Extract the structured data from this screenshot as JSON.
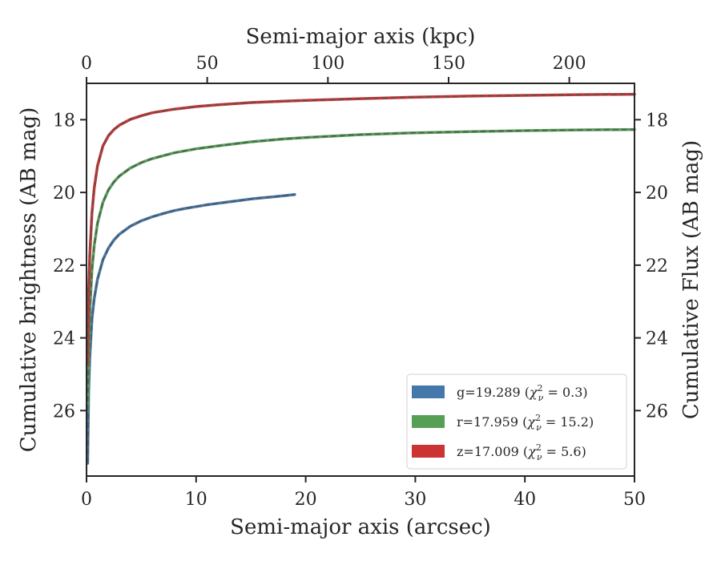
{
  "chart_data": {
    "type": "line",
    "xlabel": "Semi-major axis (arcsec)",
    "ylabel": "Cumulative brightness (AB mag)",
    "x2label": "Semi-major axis (kpc)",
    "y2label": "Cumulative Flux (AB mag)",
    "xlim": [
      0,
      50
    ],
    "ylim": [
      27.8,
      17.0
    ],
    "y_inverted": true,
    "x_ticks": [
      0,
      10,
      20,
      30,
      40,
      50
    ],
    "y_ticks": [
      18,
      20,
      22,
      24,
      26
    ],
    "x2lim": [
      0,
      227
    ],
    "x2_ticks": [
      0,
      50,
      100,
      150,
      200
    ],
    "grid": false,
    "legend_position": "bottom-right",
    "series": [
      {
        "name": "g=19.289 (χ²ν = 0.3)",
        "legend_main": "g=19.289 (",
        "legend_tail": " = 0.3)",
        "color": "#4477aa",
        "model_color": "#555555",
        "x": [
          0.1,
          0.2,
          0.3,
          0.5,
          0.7,
          1.0,
          1.5,
          2.0,
          2.5,
          3.0,
          4.0,
          5.0,
          6.0,
          7.0,
          8.0,
          9.0,
          10.0,
          11.0,
          12.0,
          13.0,
          14.0,
          15.0,
          16.0,
          17.0,
          18.0,
          19.0
        ],
        "y": [
          27.45,
          25.45,
          24.52,
          23.48,
          22.92,
          22.39,
          21.85,
          21.53,
          21.31,
          21.15,
          20.93,
          20.78,
          20.67,
          20.58,
          20.5,
          20.44,
          20.39,
          20.34,
          20.3,
          20.26,
          20.22,
          20.18,
          20.15,
          20.12,
          20.09,
          20.06
        ]
      },
      {
        "name": "r=17.959 (χ²ν = 15.2)",
        "legend_main": "r=17.959 (",
        "legend_tail": " = 15.2)",
        "color": "#55a055",
        "model_color": "#555555",
        "x": [
          0.1,
          0.2,
          0.3,
          0.5,
          0.7,
          1.0,
          1.5,
          2.0,
          2.5,
          3.0,
          4.0,
          5.0,
          6.0,
          8.0,
          10.0,
          12.0,
          15.0,
          18.0,
          20.0,
          25.0,
          30.0,
          35.0,
          40.0,
          45.0,
          50.0
        ],
        "y": [
          26.0,
          24.2,
          23.26,
          22.13,
          21.46,
          20.85,
          20.27,
          19.93,
          19.71,
          19.55,
          19.33,
          19.18,
          19.07,
          18.91,
          18.8,
          18.72,
          18.61,
          18.53,
          18.49,
          18.41,
          18.36,
          18.33,
          18.3,
          18.28,
          18.27
        ]
      },
      {
        "name": "z=17.009 (χ²ν = 5.6)",
        "legend_main": "z=17.009 (",
        "legend_tail": " = 5.6)",
        "color": "#cc3333",
        "model_color": "#555555",
        "x": [
          0.1,
          0.2,
          0.3,
          0.5,
          0.7,
          1.0,
          1.5,
          2.0,
          2.5,
          3.0,
          4.0,
          5.0,
          6.0,
          8.0,
          10.0,
          12.0,
          15.0,
          18.0,
          20.0,
          25.0,
          30.0,
          35.0,
          40.0,
          45.0,
          50.0
        ],
        "y": [
          24.7,
          22.7,
          21.72,
          20.56,
          19.88,
          19.27,
          18.72,
          18.44,
          18.27,
          18.15,
          17.99,
          17.89,
          17.81,
          17.71,
          17.64,
          17.59,
          17.53,
          17.49,
          17.47,
          17.42,
          17.38,
          17.35,
          17.33,
          17.31,
          17.3
        ]
      }
    ]
  }
}
